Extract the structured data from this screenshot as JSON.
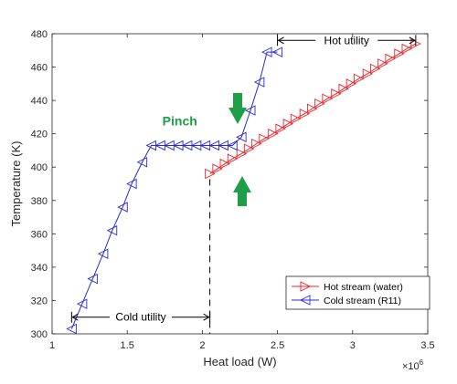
{
  "chart_data": {
    "type": "line",
    "xlabel": "Heat load (W)",
    "ylabel": "Temperature (K)",
    "x_exponent_label": "×10",
    "x_exponent_power": "6",
    "xlim": [
      1,
      3.5
    ],
    "ylim": [
      300,
      480
    ],
    "x_ticks": [
      "1",
      "1.5",
      "2",
      "2.5",
      "3",
      "3.5"
    ],
    "y_ticks": [
      "300",
      "320",
      "340",
      "360",
      "380",
      "400",
      "420",
      "440",
      "460",
      "480"
    ],
    "grid": false,
    "legend_position": "bottom-right",
    "series": [
      {
        "name": "Hot stream (water)",
        "color": "#e8262b",
        "marker": "triangle-right",
        "x": [
          2.05,
          2.1,
          2.15,
          2.2,
          2.26,
          2.31,
          2.36,
          2.41,
          2.47,
          2.52,
          2.57,
          2.62,
          2.68,
          2.73,
          2.78,
          2.83,
          2.89,
          2.94,
          2.99,
          3.04,
          3.1,
          3.15,
          3.2,
          3.25,
          3.31,
          3.36,
          3.42
        ],
        "y": [
          396,
          399,
          402,
          405,
          408,
          411,
          414,
          417,
          420,
          423,
          426,
          429,
          432,
          435,
          438,
          441,
          444,
          447,
          450,
          453,
          456,
          459,
          462,
          465,
          468,
          471,
          474
        ]
      },
      {
        "name": "Cold stream (R11)",
        "color": "#2a2ad6",
        "marker": "triangle-left",
        "x": [
          1.13,
          1.2,
          1.27,
          1.34,
          1.4,
          1.47,
          1.53,
          1.6,
          1.66,
          1.72,
          1.78,
          1.84,
          1.9,
          1.96,
          2.02,
          2.08,
          2.14,
          2.2,
          2.26,
          2.32,
          2.38,
          2.43,
          2.5
        ],
        "y": [
          303,
          318,
          333,
          348,
          362,
          376,
          390,
          403,
          413,
          413,
          413,
          413,
          413,
          413,
          413,
          413,
          413,
          413,
          418,
          434,
          451,
          469,
          469
        ]
      }
    ],
    "annotations": {
      "hot_utility": {
        "text": "Hot utility",
        "x_from": 2.5,
        "x_to": 3.42,
        "y": 476
      },
      "cold_utility": {
        "text": "Cold utility",
        "x_from": 1.13,
        "x_to": 2.05,
        "y": 310
      },
      "pinch": {
        "text": "Pinch",
        "color": "#1f9e48",
        "x": 1.85,
        "y": 425
      },
      "pinch_line": {
        "x": 2.05,
        "y_from": 300,
        "y_to": 396
      },
      "arrow_color": "#1f9e48"
    }
  }
}
